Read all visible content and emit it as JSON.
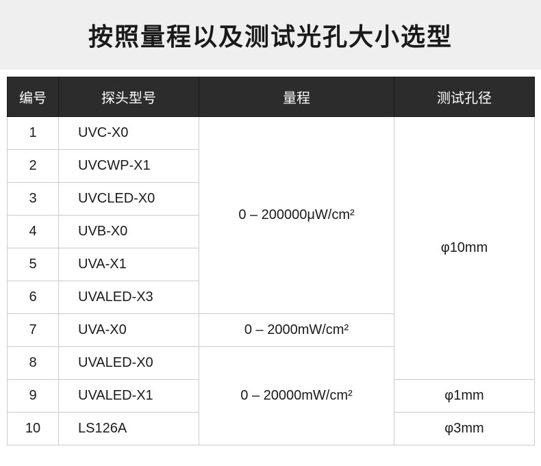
{
  "title": "按照量程以及测试光孔大小选型",
  "headers": {
    "num": "编号",
    "model": "探头型号",
    "range": "量程",
    "aperture": "测试孔径"
  },
  "rows": {
    "r1_num": "1",
    "r1_model": "UVC-X0",
    "r2_num": "2",
    "r2_model": "UVCWP-X1",
    "r3_num": "3",
    "r3_model": "UVCLED-X0",
    "r4_num": "4",
    "r4_model": "UVB-X0",
    "r5_num": "5",
    "r5_model": "UVA-X1",
    "r6_num": "6",
    "r6_model": "UVALED-X3",
    "r7_num": "7",
    "r7_model": "UVA-X0",
    "r8_num": "8",
    "r8_model": "UVALED-X0",
    "r9_num": "9",
    "r9_model": "UVALED-X1",
    "r10_num": "10",
    "r10_model": "LS126A"
  },
  "ranges": {
    "range1": "0 – 200000μW/cm²",
    "range2": "0 – 2000mW/cm²",
    "range3": "0 – 20000mW/cm²"
  },
  "apertures": {
    "ap1": "φ10mm",
    "ap2": "φ1mm",
    "ap3": "φ3mm"
  },
  "styles": {
    "header_bg": "#2c2c2c",
    "header_color": "#ffffff",
    "cell_border": "#cccccc",
    "title_bg": "#efefef",
    "text_color": "#1a1a1a",
    "title_fontsize": 36,
    "header_fontsize": 20,
    "cell_fontsize": 20
  }
}
